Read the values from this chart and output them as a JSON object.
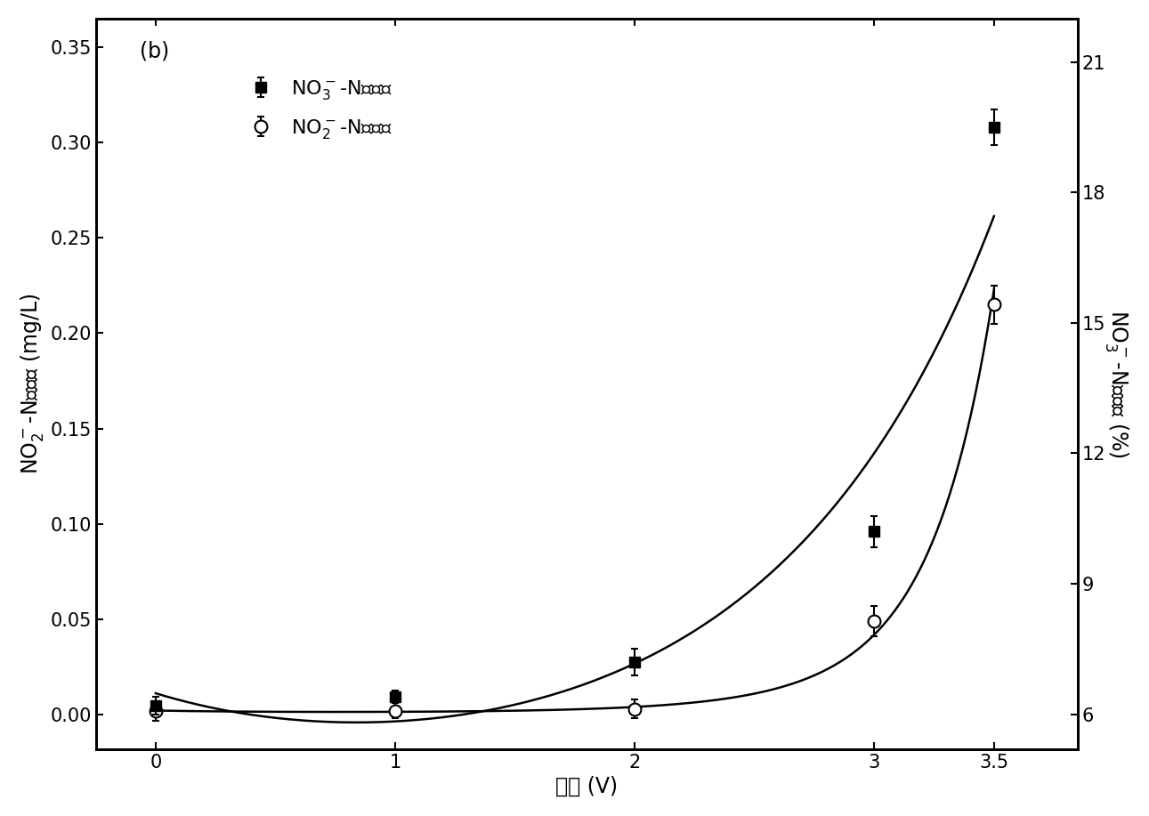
{
  "x_data": [
    0,
    1,
    2,
    3,
    3.5
  ],
  "no3_removal_rate": [
    6.2,
    6.4,
    7.2,
    10.2,
    19.5
  ],
  "no3_yerr": [
    0.2,
    0.15,
    0.3,
    0.35,
    0.4
  ],
  "no2_generation": [
    0.002,
    0.002,
    0.003,
    0.049,
    0.215
  ],
  "no2_yerr": [
    0.005,
    0.004,
    0.005,
    0.008,
    0.01
  ],
  "xlabel": "电压 (V)",
  "ylabel_left": "NO$_2^-$-N生成量 (mg/L)",
  "ylabel_right": "NO$_3^-$-N去除率 (%)",
  "legend_label_square": "NO$_3^-$-N去除率",
  "legend_label_circle": "NO$_2^-$-N生成量",
  "panel_label": "(b)",
  "xlim": [
    -0.25,
    3.85
  ],
  "ylim_left": [
    -0.018,
    0.365
  ],
  "ylim_right": [
    5.2,
    22.0
  ],
  "yticks_left": [
    0.0,
    0.05,
    0.1,
    0.15,
    0.2,
    0.25,
    0.3,
    0.35
  ],
  "yticks_right": [
    6,
    9,
    12,
    15,
    18,
    21
  ],
  "xticks": [
    0,
    1,
    2,
    3,
    3.5
  ],
  "bg_color": "#ffffff",
  "line_color": "#000000",
  "marker_size_square": 8,
  "marker_size_circle": 10,
  "linewidth": 1.8,
  "fontsize_label": 17,
  "fontsize_tick": 15,
  "fontsize_legend": 16,
  "fontsize_panel": 17
}
